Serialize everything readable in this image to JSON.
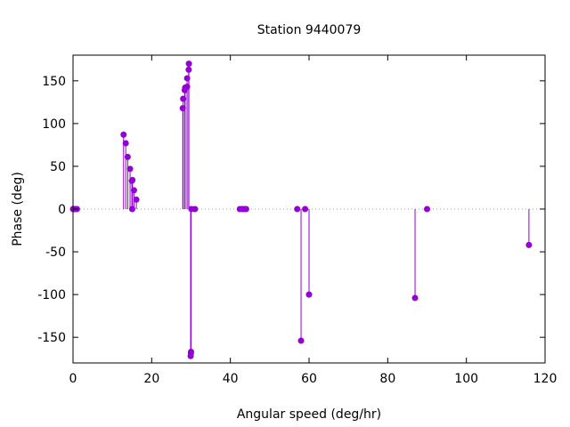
{
  "chart_data": {
    "type": "stem",
    "title": "Station 9440079",
    "xlabel": "Angular speed (deg/hr)",
    "ylabel": "Phase (deg)",
    "xlim": [
      0,
      120
    ],
    "ylim": [
      -180,
      180
    ],
    "xticks": [
      0,
      20,
      40,
      60,
      80,
      100,
      120
    ],
    "yticks": [
      -150,
      -100,
      -50,
      0,
      50,
      100,
      150
    ],
    "grid": false,
    "zero_line": "dotted",
    "color": "#9400d3",
    "points": [
      {
        "x": 0.0,
        "y": 0
      },
      {
        "x": 0.04,
        "y": 0
      },
      {
        "x": 0.08,
        "y": 0
      },
      {
        "x": 0.5,
        "y": 0
      },
      {
        "x": 1.0,
        "y": 0
      },
      {
        "x": 12.85,
        "y": 87
      },
      {
        "x": 13.4,
        "y": 77
      },
      {
        "x": 13.9,
        "y": 61
      },
      {
        "x": 14.5,
        "y": 47
      },
      {
        "x": 14.96,
        "y": 33
      },
      {
        "x": 15.04,
        "y": 0
      },
      {
        "x": 15.1,
        "y": 34
      },
      {
        "x": 15.5,
        "y": 22
      },
      {
        "x": 16.1,
        "y": 11
      },
      {
        "x": 27.9,
        "y": 118
      },
      {
        "x": 28.0,
        "y": 129
      },
      {
        "x": 28.4,
        "y": 139
      },
      {
        "x": 28.5,
        "y": 142
      },
      {
        "x": 28.99,
        "y": 143
      },
      {
        "x": 29.0,
        "y": 153
      },
      {
        "x": 29.4,
        "y": 163
      },
      {
        "x": 29.45,
        "y": 170
      },
      {
        "x": 29.9,
        "y": -172
      },
      {
        "x": 29.96,
        "y": -169
      },
      {
        "x": 30.0,
        "y": -167
      },
      {
        "x": 30.1,
        "y": 0
      },
      {
        "x": 31.0,
        "y": 0
      },
      {
        "x": 42.4,
        "y": 0
      },
      {
        "x": 43.0,
        "y": 0
      },
      {
        "x": 43.5,
        "y": 0
      },
      {
        "x": 44.0,
        "y": 0
      },
      {
        "x": 57.0,
        "y": 0
      },
      {
        "x": 57.97,
        "y": -154
      },
      {
        "x": 59.0,
        "y": 0
      },
      {
        "x": 60.0,
        "y": -100
      },
      {
        "x": 86.95,
        "y": -104
      },
      {
        "x": 90.0,
        "y": 0
      },
      {
        "x": 115.9,
        "y": -42
      }
    ]
  }
}
